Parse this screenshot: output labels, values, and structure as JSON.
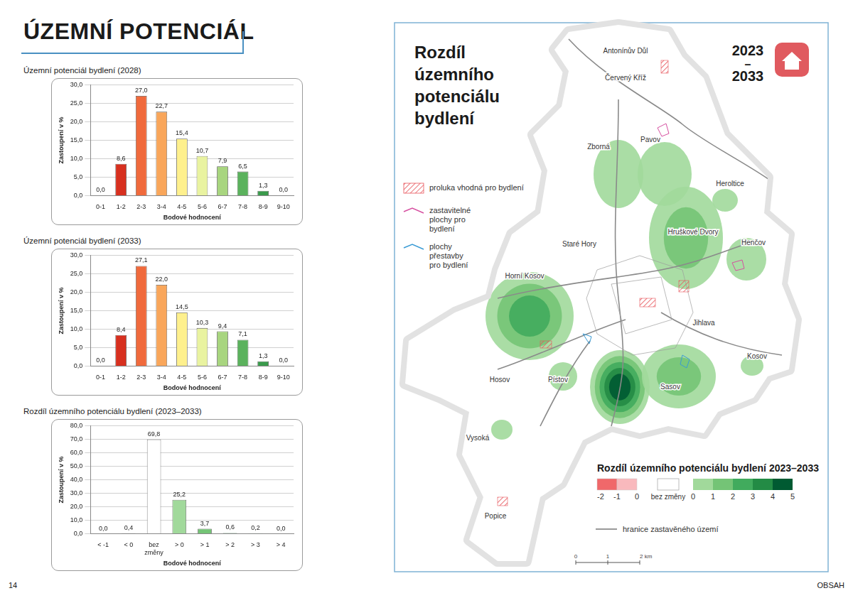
{
  "header": {
    "title": "ÚZEMNÍ POTENCIÁL"
  },
  "footer": {
    "page_number": "14",
    "link": "OBSAH"
  },
  "chart_data": [
    {
      "type": "bar",
      "title": "Územní potenciál bydlení (2028)",
      "x_label": "Bodové hodnocení",
      "y_label": "Zastoupení v %",
      "categories": [
        "0-1",
        "1-2",
        "2-3",
        "3-4",
        "4-5",
        "5-6",
        "6-7",
        "7-8",
        "8-9",
        "9-10"
      ],
      "values": [
        0,
        8.6,
        27.0,
        22.7,
        15.4,
        10.7,
        7.9,
        6.5,
        1.3,
        0
      ],
      "value_labels": [
        "0,0",
        "8,6",
        "27,0",
        "22,7",
        "15,4",
        "10,7",
        "7,9",
        "6,5",
        "1,3",
        "0,0"
      ],
      "colors": [
        "#a50026",
        "#d7301f",
        "#f06a3c",
        "#f9a65a",
        "#fef08d",
        "#e9f3a0",
        "#a8d57f",
        "#5bb25d",
        "#3a9a4b",
        "#006837"
      ],
      "ylim": [
        0,
        30
      ],
      "yticks": [
        {
          "value": 0,
          "label": "0,0"
        },
        {
          "value": 5,
          "label": "5,0"
        },
        {
          "value": 10,
          "label": "10,0"
        },
        {
          "value": 15,
          "label": "15,0"
        },
        {
          "value": 20,
          "label": "20,0"
        },
        {
          "value": 25,
          "label": "25,0"
        },
        {
          "value": 30,
          "label": "30,0"
        }
      ],
      "grid": true,
      "data_labels": true
    },
    {
      "type": "bar",
      "title": "Územní potenciál bydlení (2033)",
      "x_label": "Bodové hodnocení",
      "y_label": "Zastoupení v %",
      "categories": [
        "0-1",
        "1-2",
        "2-3",
        "3-4",
        "4-5",
        "5-6",
        "6-7",
        "7-8",
        "8-9",
        "9-10"
      ],
      "values": [
        0,
        8.4,
        27.1,
        22.0,
        14.5,
        10.3,
        9.4,
        7.1,
        1.3,
        0
      ],
      "value_labels": [
        "0,0",
        "8,4",
        "27,1",
        "22,0",
        "14,5",
        "10,3",
        "9,4",
        "7,1",
        "1,3",
        "0,0"
      ],
      "colors": [
        "#a50026",
        "#d7301f",
        "#f06a3c",
        "#f9a65a",
        "#fef08d",
        "#e9f3a0",
        "#a8d57f",
        "#5bb25d",
        "#3a9a4b",
        "#006837"
      ],
      "ylim": [
        0,
        30
      ],
      "yticks": [
        {
          "value": 0,
          "label": "0,0"
        },
        {
          "value": 5,
          "label": "5,0"
        },
        {
          "value": 10,
          "label": "10,0"
        },
        {
          "value": 15,
          "label": "15,0"
        },
        {
          "value": 20,
          "label": "20,0"
        },
        {
          "value": 25,
          "label": "25,0"
        },
        {
          "value": 30,
          "label": "30,0"
        }
      ],
      "grid": true,
      "data_labels": true
    },
    {
      "type": "bar",
      "title": "Rozdíl územního potenciálu bydlení (2023–2033)",
      "x_label": "Bodové hodnocení",
      "y_label": "Zastoupení v %",
      "categories": [
        "< -1",
        "< 0",
        "bez změny",
        "> 0",
        "> 1",
        "> 2",
        "> 3",
        "> 4"
      ],
      "values": [
        0,
        0.4,
        69.8,
        25.2,
        3.7,
        0.6,
        0.2,
        0
      ],
      "value_labels": [
        "0,0",
        "0,4",
        "69,8",
        "25,2",
        "3,7",
        "0,6",
        "0,2",
        "0,0"
      ],
      "colors": [
        "#e34a4a",
        "#f4a6a6",
        "#ffffff",
        "#a1d99b",
        "#74c476",
        "#41ab5d",
        "#238b45",
        "#005a32"
      ],
      "ylim": [
        0,
        80
      ],
      "yticks": [
        {
          "value": 0,
          "label": "0,0"
        },
        {
          "value": 10,
          "label": "10,0"
        },
        {
          "value": 20,
          "label": "20,0"
        },
        {
          "value": 30,
          "label": "30,0"
        },
        {
          "value": 40,
          "label": "40,0"
        },
        {
          "value": 50,
          "label": "50,0"
        },
        {
          "value": 60,
          "label": "60,0"
        },
        {
          "value": 70,
          "label": "70,0"
        },
        {
          "value": 80,
          "label": "80,0"
        }
      ],
      "grid": true,
      "data_labels": true
    }
  ],
  "map": {
    "title": "Rozdíl územního potenciálu bydlení",
    "period": "2023 – 2033",
    "legend": [
      {
        "label": "proluka vhodná pro bydlení",
        "marker": "hatch",
        "color": "#e8545a"
      },
      {
        "label": "zastavitelné plochy pro bydlení",
        "marker": "line",
        "color": "#d64fa0"
      },
      {
        "label": "plochy přestavby pro bydlení",
        "marker": "line",
        "color": "#3a9bd5"
      }
    ],
    "places": [
      {
        "name": "Antonínův Důl",
        "change": null
      },
      {
        "name": "Červený Kříž",
        "change": null
      },
      {
        "name": "Zborná",
        "change": 1
      },
      {
        "name": "Pavov",
        "change": 1
      },
      {
        "name": "Heroltice",
        "change": 1
      },
      {
        "name": "Staré Hory",
        "change": null
      },
      {
        "name": "Hruškové Dvory",
        "change": 2
      },
      {
        "name": "Henčov",
        "change": 1
      },
      {
        "name": "Horní Kosov",
        "change": 3
      },
      {
        "name": "Jihlava",
        "change": 5
      },
      {
        "name": "Kosov",
        "change": 1
      },
      {
        "name": "Hosov",
        "change": null
      },
      {
        "name": "Pístov",
        "change": 1
      },
      {
        "name": "Sasov",
        "change": 2
      },
      {
        "name": "Vysoká",
        "change": 1
      },
      {
        "name": "Popice",
        "change": null
      }
    ],
    "color_scale": {
      "title": "Rozdíl územního potenciálu bydlení 2023–2033",
      "negative": {
        "ticks": [
          -2,
          -1,
          0
        ],
        "colors": [
          "#f0686a",
          "#f9b9bd"
        ]
      },
      "neutral": {
        "label": "bez změny",
        "color": "#ffffff"
      },
      "positive": {
        "ticks": [
          0,
          1,
          2,
          3,
          4,
          5
        ],
        "colors": [
          "#a1d99b",
          "#74c476",
          "#41ab5d",
          "#238b45",
          "#005a32"
        ]
      }
    },
    "boundary_legend": {
      "label": "hranice zastavěného území",
      "color": "#555555"
    },
    "scale_bar": {
      "ticks": [
        0,
        1,
        2
      ],
      "unit": "km"
    }
  }
}
